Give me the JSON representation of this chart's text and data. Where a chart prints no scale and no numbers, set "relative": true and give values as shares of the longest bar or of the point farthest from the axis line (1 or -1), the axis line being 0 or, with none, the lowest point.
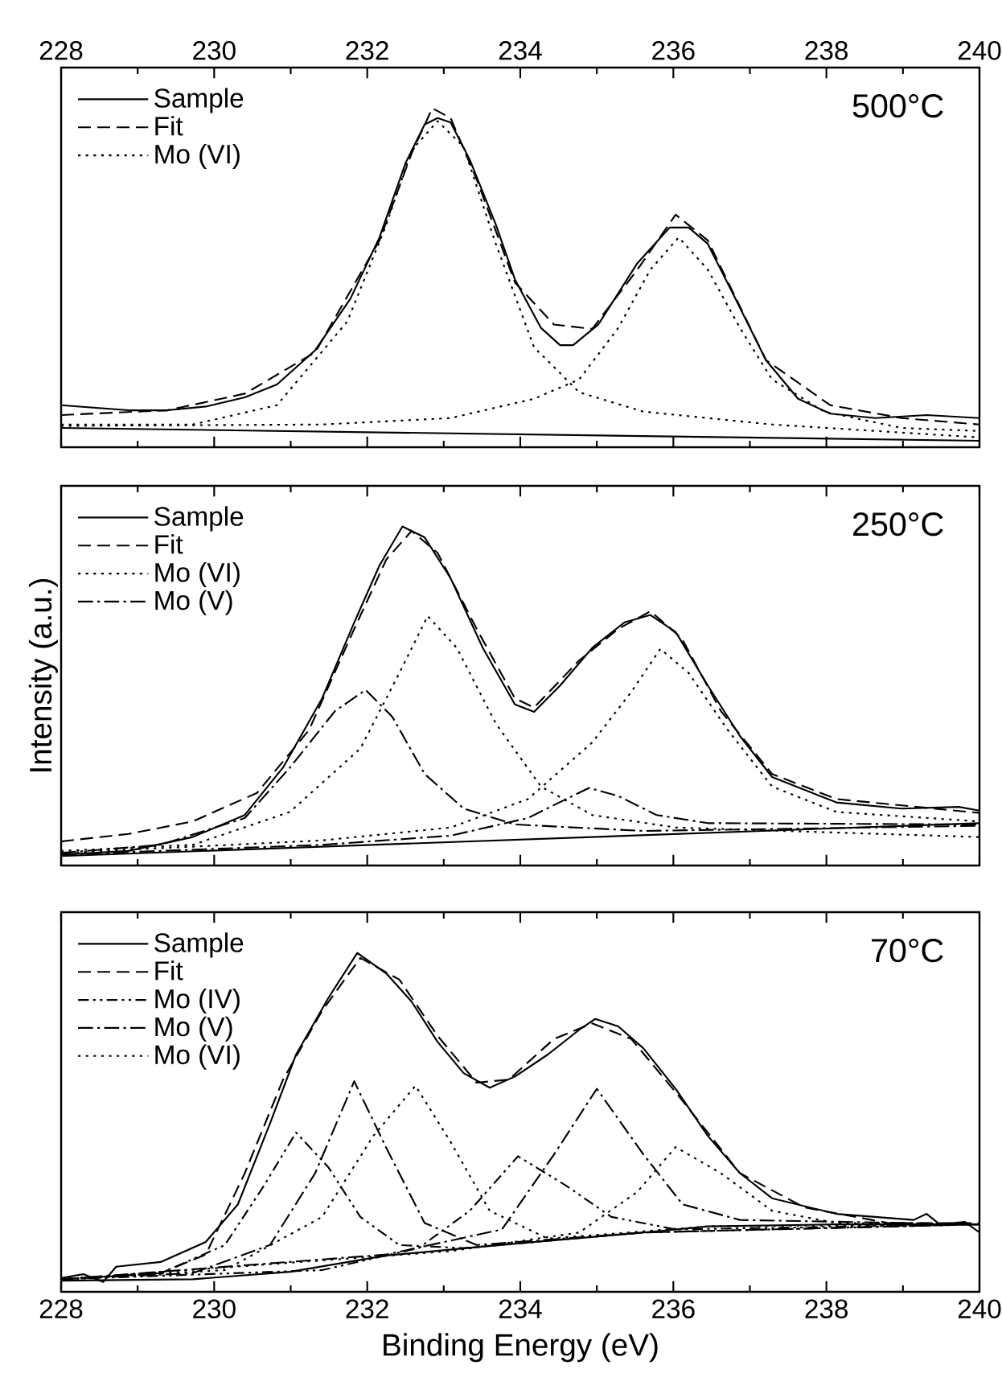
{
  "chart_data": [
    {
      "type": "line",
      "title": "500°C",
      "relative": true,
      "legend": "top left",
      "xlim": [
        228,
        240
      ],
      "xticks": [
        228,
        230,
        232,
        234,
        236,
        238,
        240
      ],
      "series": [
        {
          "name": "Sample",
          "color": "#000000",
          "line_style": "solid",
          "x": [
            228,
            228.88,
            229.39,
            229.89,
            230.4,
            230.82,
            231.32,
            231.78,
            232.16,
            232.5,
            232.75,
            232.92,
            233.09,
            233.34,
            233.68,
            233.93,
            234.27,
            234.52,
            234.69,
            235.02,
            235.53,
            235.95,
            236.2,
            236.45,
            236.79,
            237.21,
            237.63,
            238.05,
            238.64,
            239.31,
            240
          ],
          "values": [
            0.124,
            0.109,
            0.109,
            0.12,
            0.147,
            0.185,
            0.286,
            0.438,
            0.619,
            0.838,
            0.952,
            0.971,
            0.958,
            0.848,
            0.657,
            0.495,
            0.352,
            0.301,
            0.301,
            0.362,
            0.543,
            0.648,
            0.648,
            0.6,
            0.448,
            0.257,
            0.143,
            0.099,
            0.086,
            0.095,
            0.086
          ]
        },
        {
          "name": "Fit",
          "color": "#000000",
          "line_style": "dashed",
          "x": [
            228,
            229.39,
            230.4,
            231.32,
            232.16,
            232.58,
            232.85,
            233.09,
            233.43,
            233.93,
            234.44,
            234.94,
            235.53,
            236.03,
            236.45,
            237.21,
            238.05,
            238.98,
            240
          ],
          "values": [
            0.095,
            0.109,
            0.158,
            0.28,
            0.61,
            0.867,
            1.0,
            0.971,
            0.79,
            0.486,
            0.362,
            0.349,
            0.524,
            0.686,
            0.61,
            0.257,
            0.124,
            0.086,
            0.067
          ]
        },
        {
          "name": "Mo (VI)",
          "color": "#000000",
          "line_style": "dotted",
          "x": [
            228,
            229.72,
            230.82,
            231.74,
            232.25,
            232.58,
            232.92,
            233.26,
            233.68,
            234.18,
            234.77,
            235.61,
            237.29,
            240
          ],
          "values": [
            0.067,
            0.067,
            0.124,
            0.371,
            0.657,
            0.876,
            0.962,
            0.886,
            0.6,
            0.295,
            0.162,
            0.105,
            0.067,
            0.029
          ]
        },
        {
          "color": "#000000",
          "line_style": "dotted",
          "x": [
            228,
            231.41,
            233.09,
            234.18,
            234.77,
            235.28,
            235.7,
            236.07,
            236.45,
            236.87,
            237.29,
            237.97,
            238.98,
            240
          ],
          "values": [
            0.063,
            0.067,
            0.086,
            0.143,
            0.2,
            0.352,
            0.524,
            0.619,
            0.524,
            0.352,
            0.2,
            0.105,
            0.057,
            0.048
          ]
        },
        {
          "color": "#000000",
          "line_style": "solid",
          "x": [
            228,
            240
          ],
          "values": [
            0.057,
            0.019
          ]
        }
      ]
    },
    {
      "type": "line",
      "title": "250°C",
      "ylabel": "Intensity (a.u.)",
      "relative": true,
      "legend": "top left",
      "xlim": [
        228,
        240
      ],
      "xticks": [
        228,
        230,
        232,
        234,
        236,
        238,
        240
      ],
      "tick_labels": false,
      "series": [
        {
          "name": "Sample",
          "color": "#000000",
          "line_style": "solid",
          "x": [
            228,
            228.88,
            229.72,
            230.4,
            230.9,
            231.41,
            231.83,
            232.16,
            232.46,
            232.75,
            233.09,
            233.51,
            233.93,
            234.18,
            234.52,
            234.94,
            235.36,
            235.7,
            236.03,
            236.45,
            236.87,
            237.29,
            238.13,
            238.98,
            239.73,
            240
          ],
          "values": [
            0.032,
            0.043,
            0.084,
            0.149,
            0.289,
            0.493,
            0.717,
            0.885,
            1.0,
            0.968,
            0.847,
            0.642,
            0.475,
            0.453,
            0.531,
            0.642,
            0.717,
            0.739,
            0.689,
            0.531,
            0.382,
            0.261,
            0.186,
            0.168,
            0.173,
            0.162
          ]
        },
        {
          "name": "Fit",
          "color": "#000000",
          "line_style": "dashed",
          "x": [
            228,
            228.88,
            229.72,
            230.56,
            231.24,
            231.83,
            232.25,
            232.58,
            232.92,
            233.43,
            233.93,
            234.18,
            234.77,
            235.28,
            235.7,
            236.11,
            236.62,
            237.29,
            238.13,
            240
          ],
          "values": [
            0.071,
            0.093,
            0.13,
            0.214,
            0.4,
            0.698,
            0.903,
            0.987,
            0.922,
            0.698,
            0.493,
            0.466,
            0.605,
            0.698,
            0.75,
            0.67,
            0.456,
            0.27,
            0.196,
            0.155
          ]
        },
        {
          "name": "Mo (VI)",
          "color": "#000000",
          "line_style": "dotted",
          "x": [
            228,
            229.72,
            230.99,
            231.91,
            232.42,
            232.79,
            233.17,
            233.68,
            234.27,
            234.94,
            236.03,
            240
          ],
          "values": [
            0.043,
            0.061,
            0.158,
            0.345,
            0.568,
            0.736,
            0.642,
            0.419,
            0.233,
            0.149,
            0.112,
            0.084
          ]
        },
        {
          "name": "Mo (V)",
          "color": "#000000",
          "line_style": "dashdot",
          "x": [
            228,
            229.3,
            230.4,
            230.99,
            231.58,
            231.98,
            232.33,
            232.75,
            233.26,
            233.93,
            235.61,
            240
          ],
          "values": [
            0.037,
            0.061,
            0.14,
            0.289,
            0.456,
            0.518,
            0.438,
            0.27,
            0.168,
            0.121,
            0.102,
            0.117
          ]
        },
        {
          "color": "#000000",
          "line_style": "dotted",
          "x": [
            228,
            231.41,
            233.09,
            234.1,
            234.94,
            235.45,
            235.83,
            236.2,
            236.71,
            237.29,
            238.13,
            240
          ],
          "values": [
            0.037,
            0.074,
            0.112,
            0.196,
            0.363,
            0.512,
            0.639,
            0.568,
            0.4,
            0.233,
            0.158,
            0.13
          ]
        },
        {
          "color": "#000000",
          "line_style": "dashdot",
          "x": [
            228,
            231.41,
            233.09,
            234.1,
            234.6,
            234.9,
            235.28,
            235.78,
            236.45,
            240
          ],
          "values": [
            0.032,
            0.061,
            0.088,
            0.14,
            0.196,
            0.229,
            0.205,
            0.149,
            0.125,
            0.121
          ]
        },
        {
          "color": "#000000",
          "line_style": "solid",
          "x": [
            228,
            240
          ],
          "values": [
            0.028,
            0.125
          ]
        }
      ]
    },
    {
      "type": "line",
      "title": "70°C",
      "xlabel": "Binding Energy (eV)",
      "relative": true,
      "legend": "top left",
      "xlim": [
        228,
        240
      ],
      "xticks": [
        228,
        230,
        232,
        234,
        236,
        238,
        240
      ],
      "series": [
        {
          "name": "Sample",
          "color": "#000000",
          "line_style": "solid",
          "x": [
            228,
            228.29,
            228.55,
            228.72,
            229.3,
            229.89,
            230.31,
            230.73,
            231.07,
            231.49,
            231.87,
            232.25,
            232.58,
            232.92,
            233.26,
            233.6,
            233.93,
            234.36,
            234.77,
            234.98,
            235.28,
            235.61,
            236.03,
            236.45,
            236.87,
            237.29,
            238.13,
            239.14,
            239.31,
            239.48,
            239.81,
            240
          ],
          "values": [
            0.041,
            0.052,
            0.029,
            0.074,
            0.088,
            0.147,
            0.258,
            0.497,
            0.7,
            0.866,
            1.0,
            0.939,
            0.856,
            0.737,
            0.645,
            0.602,
            0.635,
            0.7,
            0.773,
            0.805,
            0.783,
            0.718,
            0.599,
            0.46,
            0.35,
            0.276,
            0.23,
            0.212,
            0.23,
            0.199,
            0.206,
            0.175
          ]
        },
        {
          "name": "Fit",
          "color": "#000000",
          "line_style": "dashed",
          "x": [
            228,
            229.3,
            229.89,
            230.4,
            230.9,
            231.41,
            231.91,
            232.42,
            232.92,
            233.43,
            233.85,
            234.44,
            234.94,
            235.45,
            236.03,
            236.87,
            237.71,
            238.81,
            240
          ],
          "values": [
            0.037,
            0.055,
            0.11,
            0.35,
            0.626,
            0.829,
            0.985,
            0.921,
            0.755,
            0.617,
            0.626,
            0.746,
            0.792,
            0.746,
            0.589,
            0.35,
            0.249,
            0.203,
            0.203
          ]
        },
        {
          "name": "Mo (IV)",
          "color": "#000000",
          "line_style": "dashdotdot",
          "x": [
            228,
            229.3,
            230.14,
            230.65,
            231.07,
            231.49,
            231.91,
            232.42,
            233.26,
            235.61,
            240
          ],
          "values": [
            0.037,
            0.055,
            0.138,
            0.313,
            0.47,
            0.368,
            0.221,
            0.138,
            0.129,
            0.175,
            0.199
          ]
        },
        {
          "name": "Mo (V)",
          "color": "#000000",
          "line_style": "dashdot",
          "x": [
            228,
            229.72,
            230.73,
            231.32,
            231.83,
            232.25,
            232.75,
            233.43,
            235.61,
            240
          ],
          "values": [
            0.037,
            0.055,
            0.138,
            0.35,
            0.621,
            0.424,
            0.203,
            0.138,
            0.175,
            0.199
          ]
        },
        {
          "name": "Mo (VI)",
          "color": "#000000",
          "line_style": "dotted",
          "x": [
            228,
            230.14,
            231.41,
            232.08,
            232.63,
            233.09,
            233.6,
            234.36,
            236.45,
            240
          ],
          "values": [
            0.037,
            0.064,
            0.221,
            0.46,
            0.608,
            0.442,
            0.239,
            0.157,
            0.193,
            0.199
          ]
        },
        {
          "color": "#000000",
          "line_style": "dashdotdot",
          "x": [
            228,
            231.41,
            232.67,
            233.34,
            233.97,
            234.6,
            235.19,
            236.03,
            240
          ],
          "values": [
            0.037,
            0.064,
            0.129,
            0.239,
            0.4,
            0.313,
            0.221,
            0.184,
            0.199
          ]
        },
        {
          "color": "#000000",
          "line_style": "dashdot",
          "x": [
            228,
            232.25,
            233.76,
            234.44,
            235.0,
            235.61,
            236.12,
            236.87,
            240
          ],
          "values": [
            0.037,
            0.11,
            0.184,
            0.405,
            0.599,
            0.405,
            0.258,
            0.212,
            0.199
          ]
        },
        {
          "color": "#000000",
          "line_style": "dotted",
          "x": [
            228,
            233.09,
            234.77,
            235.53,
            236.03,
            236.62,
            237.29,
            238.13,
            240
          ],
          "values": [
            0.037,
            0.12,
            0.175,
            0.295,
            0.427,
            0.35,
            0.239,
            0.203,
            0.199
          ]
        },
        {
          "color": "#000000",
          "line_style": "solid",
          "x": [
            228,
            229.72,
            230.99,
            232.25,
            233.93,
            235.61,
            236.45,
            238.13,
            240
          ],
          "values": [
            0.033,
            0.037,
            0.059,
            0.107,
            0.142,
            0.175,
            0.193,
            0.199,
            0.199
          ]
        }
      ]
    }
  ]
}
